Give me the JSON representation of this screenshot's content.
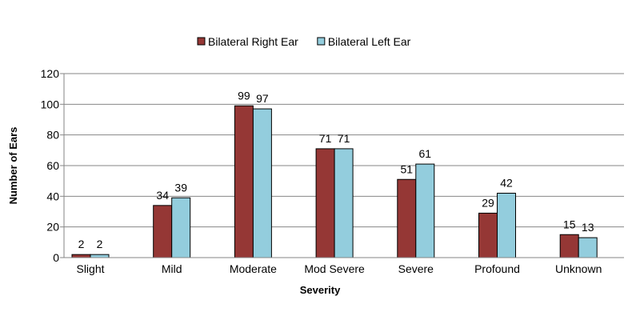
{
  "chart_data": {
    "type": "bar",
    "title": "",
    "xlabel": "Severity",
    "ylabel": "Number of Ears",
    "ylim": [
      0,
      120
    ],
    "yticks": [
      0,
      20,
      40,
      60,
      80,
      100,
      120
    ],
    "grid": true,
    "legend_position": "top",
    "categories": [
      "Slight",
      "Mild",
      "Moderate",
      "Mod Severe",
      "Severe",
      "Profound",
      "Unknown"
    ],
    "series": [
      {
        "name": "Bilateral Right Ear",
        "color": "#953735",
        "values": [
          2,
          34,
          99,
          71,
          51,
          29,
          15
        ]
      },
      {
        "name": "Bilateral Left Ear",
        "color": "#93CDDD",
        "values": [
          2,
          39,
          97,
          71,
          61,
          42,
          13
        ]
      }
    ]
  }
}
